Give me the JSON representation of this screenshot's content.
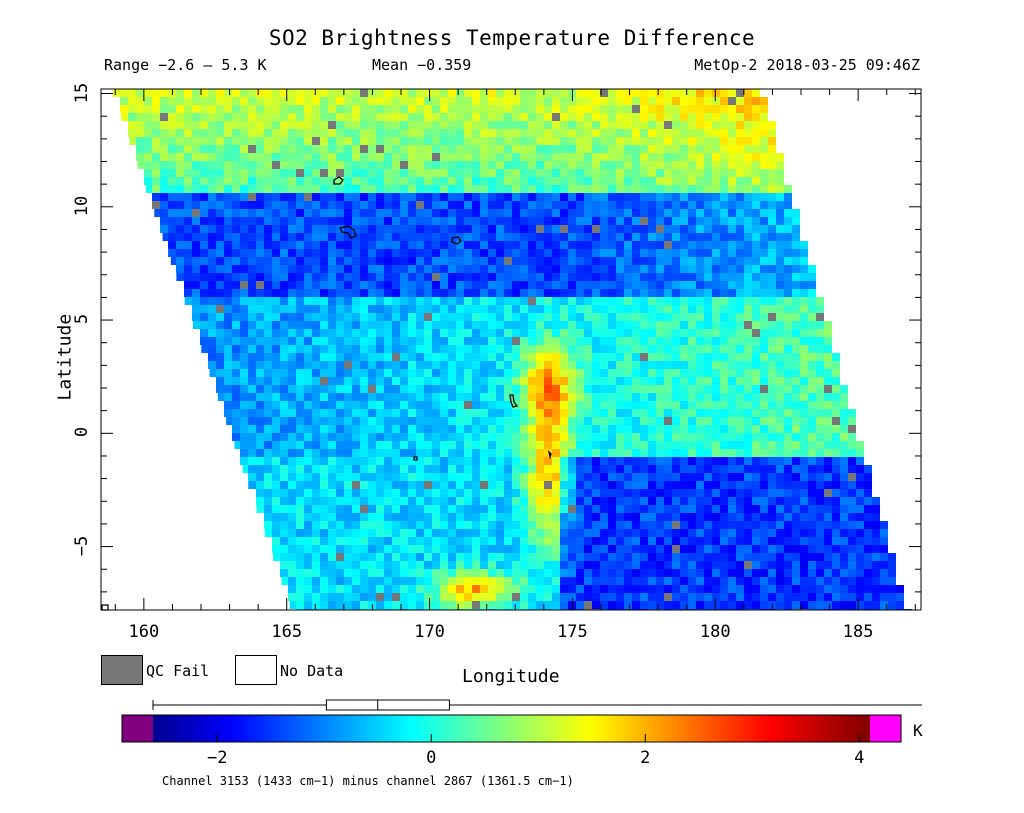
{
  "title": "SO2 Brightness Temperature Difference",
  "stats": {
    "range": "Range −2.6 – 5.3 K",
    "mean": "Mean −0.359",
    "satellite": "MetOp-2 2018-03-25 09:46Z"
  },
  "axes": {
    "xlabel": "Longitude",
    "ylabel": "Latitude",
    "xlim": [
      158.5,
      187.2
    ],
    "ylim": [
      -7.8,
      15.2
    ],
    "xticks": [
      160,
      165,
      170,
      175,
      180,
      185
    ],
    "yticks": [
      -5,
      0,
      5,
      10,
      15
    ],
    "xtick_labels": [
      "160",
      "165",
      "170",
      "175",
      "180",
      "185"
    ],
    "ytick_labels": [
      "−5",
      "0",
      "5",
      "10",
      "15"
    ]
  },
  "legend": {
    "qc_fail": "QC Fail",
    "no_data": "No Data",
    "qc_color": "#777777",
    "no_data_color": "#ffffff"
  },
  "colorbar": {
    "min": -2.6,
    "max": 4.1,
    "unit": "K",
    "ticks": [
      -2,
      0,
      2,
      4
    ],
    "tick_labels": [
      "−2",
      "0",
      "2",
      "4"
    ],
    "low_color": "#800080",
    "high_color": "#ff00ff",
    "caption": "Channel 3153 (1433 cm−1) minus channel 2867 (1361.5 cm−1)",
    "stat_box": {
      "q1": -0.98,
      "median": -0.5,
      "q3": 0.17
    }
  },
  "swath": {
    "corners_lonlat": {
      "top_left": [
        158.9,
        15.2
      ],
      "top_right": [
        181.5,
        15.2
      ],
      "bottom_right": [
        186.6,
        -7.8
      ],
      "bottom_left": [
        165.2,
        -7.8
      ]
    }
  },
  "map_features": {
    "plume": {
      "center_lonlat": [
        174.0,
        -2.0
      ],
      "peak_K": 4.0
    },
    "coastlines": "small island outlines"
  }
}
